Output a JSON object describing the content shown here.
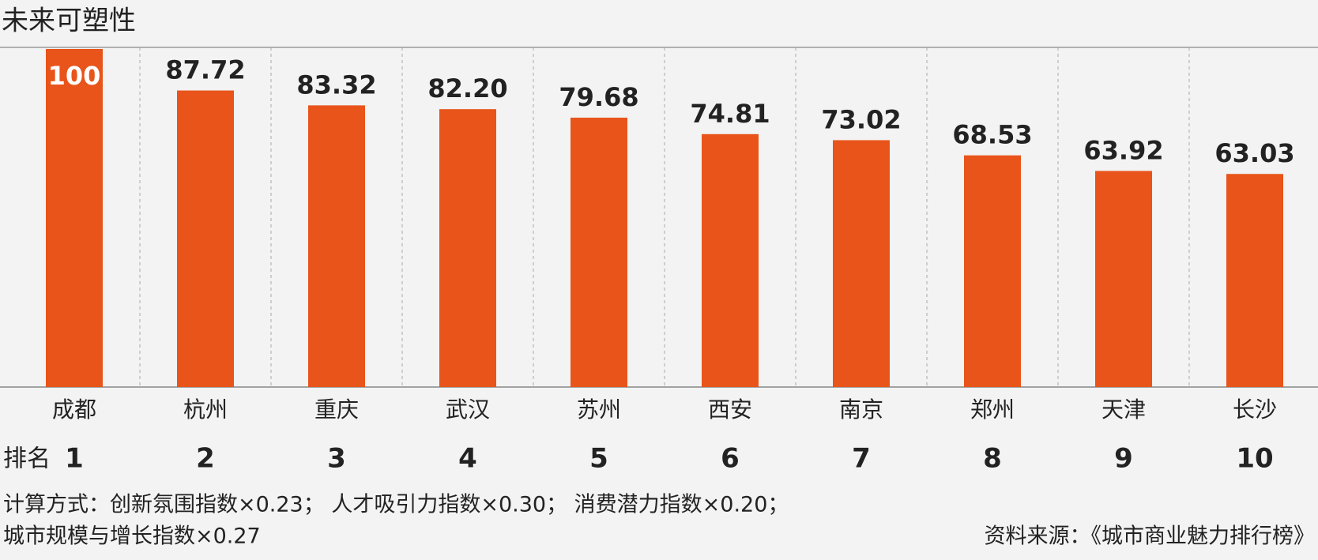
{
  "chart_data": {
    "type": "bar",
    "title": "未来可塑性",
    "categories": [
      "成都",
      "杭州",
      "重庆",
      "武汉",
      "苏州",
      "西安",
      "南京",
      "郑州",
      "天津",
      "长沙"
    ],
    "values": [
      100,
      87.72,
      83.32,
      82.2,
      79.68,
      74.81,
      73.02,
      68.53,
      63.92,
      63.03
    ],
    "value_labels": [
      "100",
      "87.72",
      "83.32",
      "82.20",
      "79.68",
      "74.81",
      "73.02",
      "68.53",
      "63.92",
      "63.03"
    ],
    "color": "#e8541a",
    "ylim": [
      0,
      100
    ],
    "rank_label": "排名",
    "ranks": [
      1,
      2,
      3,
      4,
      5,
      6,
      7,
      8,
      9,
      10
    ],
    "notes": [
      "计算方式：创新氛围指数×0.23； 人才吸引力指数×0.30； 消费潜力指数×0.20；",
      "城市规模与增长指数×0.27"
    ],
    "source": "资料来源：《城市商业魅力排行榜》"
  }
}
